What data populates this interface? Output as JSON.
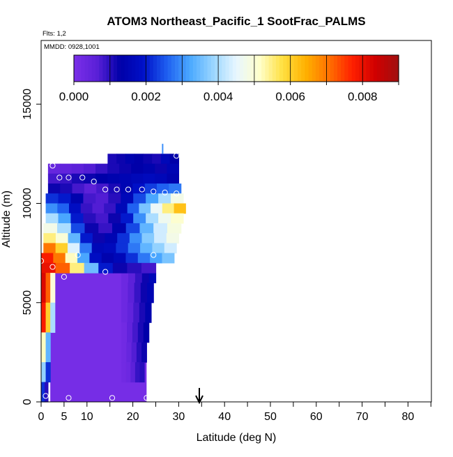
{
  "chart_data": {
    "type": "heatmap",
    "title": "ATOM3 Northeast_Pacific_1 SootFrac_PALMS",
    "flights_label": "Flts: 1,2",
    "dates_label": "MMDD: 0928,1001",
    "xlabel": "Latitude (deg N)",
    "ylabel": "Altitude (m)",
    "xlim": [
      0,
      85
    ],
    "ylim": [
      0,
      17500
    ],
    "x_ticks": [
      0,
      5,
      10,
      20,
      30,
      40,
      50,
      60,
      70,
      80
    ],
    "x_minor_ticks": [
      15,
      25,
      35,
      45,
      55,
      65,
      75,
      85
    ],
    "y_ticks": [
      0,
      5000,
      10000,
      15000
    ],
    "marker_latitude": 34.5,
    "colorbar": {
      "min": 0,
      "max": 0.009,
      "tick_values": [
        0,
        0.002,
        0.004,
        0.006,
        0.008
      ],
      "tick_labels": [
        "0.000",
        "0.002",
        "0.004",
        "0.006",
        "0.008"
      ],
      "colors": [
        "#7b2fe8",
        "#5a20d8",
        "#0000a8",
        "#0010c8",
        "#1e5ef0",
        "#4aa8ff",
        "#9ad6ff",
        "#e8f6ff",
        "#ffffcc",
        "#ffe040",
        "#ffb000",
        "#ff7000",
        "#ff2000",
        "#d00000",
        "#a01010"
      ]
    },
    "curtain_rows": [
      {
        "alt": [
          12000,
          12500
        ],
        "lat": [
          14.5,
          30
        ],
        "values": [
          0.0011,
          0.0012,
          0.0014,
          0.0013,
          0.0012,
          0.0011,
          0.0016,
          0.0013
        ]
      },
      {
        "alt": [
          11500,
          12000
        ],
        "lat": [
          1.5,
          30
        ],
        "values": [
          0.0004,
          0.0005,
          0.0006,
          0.0007,
          0.0009,
          0.0011,
          0.0012,
          0.0013,
          0.0014,
          0.0012,
          0.0015
        ]
      },
      {
        "alt": [
          11000,
          11500
        ],
        "lat": [
          1.5,
          30
        ],
        "values": [
          0.0008,
          0.0009,
          0.0011,
          0.0012,
          0.0013,
          0.0014,
          0.0015,
          0.0016,
          0.0017,
          0.0016,
          0.0014
        ]
      },
      {
        "alt": [
          10500,
          11000
        ],
        "lat": [
          1.5,
          30.5
        ],
        "values": [
          0.0012,
          0.0011,
          0.0008,
          0.0006,
          0.0008,
          0.0011,
          0.0015,
          0.0019,
          0.0023,
          0.0026,
          0.0028
        ]
      },
      {
        "alt": [
          10000,
          10500
        ],
        "lat": [
          1,
          31
        ],
        "values": [
          0.0022,
          0.002,
          0.0014,
          0.0008,
          0.0007,
          0.001,
          0.0016,
          0.0024,
          0.0032,
          0.004,
          0.0048
        ]
      },
      {
        "alt": [
          9500,
          10000
        ],
        "lat": [
          1,
          31.5
        ],
        "values": [
          0.003,
          0.0026,
          0.0018,
          0.0009,
          0.0007,
          0.0009,
          0.0016,
          0.0026,
          0.0036,
          0.0046,
          0.0055,
          0.0062
        ]
      },
      {
        "alt": [
          9000,
          9500
        ],
        "lat": [
          1,
          31
        ],
        "values": [
          0.004,
          0.0032,
          0.002,
          0.001,
          0.0008,
          0.0012,
          0.002,
          0.003,
          0.004,
          0.0047,
          0.0051
        ]
      },
      {
        "alt": [
          8500,
          9000
        ],
        "lat": [
          0.5,
          30.5
        ],
        "values": [
          0.0048,
          0.004,
          0.0024,
          0.0012,
          0.0009,
          0.0014,
          0.0024,
          0.0034,
          0.0043,
          0.0049
        ]
      },
      {
        "alt": [
          8000,
          8500
        ],
        "lat": [
          0.5,
          30
        ],
        "values": [
          0.0055,
          0.005,
          0.0034,
          0.002,
          0.0012,
          0.0015,
          0.0022,
          0.003,
          0.0037,
          0.0043,
          0.0048
        ]
      },
      {
        "alt": [
          7500,
          8000
        ],
        "lat": [
          0.5,
          29.5
        ],
        "values": [
          0.007,
          0.006,
          0.0044,
          0.0028,
          0.0016,
          0.0017,
          0.0022,
          0.0028,
          0.0034,
          0.0038,
          0.0043
        ]
      },
      {
        "alt": [
          7000,
          7500
        ],
        "lat": [
          0,
          29
        ],
        "values": [
          0.0078,
          0.007,
          0.0052,
          0.0032,
          0.0018,
          0.0014,
          0.0016,
          0.0022,
          0.0028,
          0.0032,
          0.0036
        ]
      },
      {
        "alt": [
          6500,
          7000
        ],
        "lat": [
          0,
          25
        ],
        "values": [
          0.008,
          0.0072,
          0.0055,
          0.0035,
          0.002,
          0.0012,
          0.001,
          0.0008
        ]
      },
      {
        "alt": [
          5000,
          6500
        ],
        "lat": [
          0,
          3
        ],
        "values": [
          0.0082,
          0.0072,
          0.005
        ]
      },
      {
        "alt": [
          3500,
          5000
        ],
        "lat": [
          0,
          3
        ],
        "values": [
          0.0078,
          0.006,
          0.004
        ]
      },
      {
        "alt": [
          2000,
          3500
        ],
        "lat": [
          0,
          2
        ],
        "values": [
          0.0052,
          0.0034
        ]
      },
      {
        "alt": [
          1000,
          2000
        ],
        "lat": [
          0,
          2
        ],
        "values": [
          0.0038,
          0.0022
        ]
      },
      {
        "alt": [
          0,
          1000
        ],
        "lat": [
          0,
          1.5
        ],
        "values": [
          0.0022,
          0.001
        ]
      }
    ],
    "lower_block": {
      "alt_bottom": 0,
      "alt_top": 6500,
      "lat_start": 2,
      "lat_end": 23,
      "value": 0.0001
    },
    "lower_gradient": [
      {
        "alt": [
          6000,
          6500
        ],
        "lat": [
          17.5,
          25
        ],
        "values": [
          0.0003,
          0.0006,
          0.0009,
          0.0012,
          0.0016
        ]
      },
      {
        "alt": [
          5000,
          6000
        ],
        "lat": [
          17.5,
          24.5
        ],
        "values": [
          0.0003,
          0.0006,
          0.0009,
          0.0012,
          0.0015
        ]
      },
      {
        "alt": [
          4000,
          5000
        ],
        "lat": [
          17.5,
          24
        ],
        "values": [
          0.0003,
          0.0005,
          0.0008,
          0.0011,
          0.0014
        ]
      },
      {
        "alt": [
          3000,
          4000
        ],
        "lat": [
          17.5,
          23.5
        ],
        "values": [
          0.0002,
          0.0005,
          0.0008,
          0.0011,
          0.0013
        ]
      },
      {
        "alt": [
          2000,
          3000
        ],
        "lat": [
          17.5,
          23
        ],
        "values": [
          0.0002,
          0.0004,
          0.0007,
          0.001,
          0.0012
        ]
      },
      {
        "alt": [
          1000,
          2000
        ],
        "lat": [
          17.5,
          22.5
        ],
        "values": [
          0.0002,
          0.0003,
          0.0006,
          0.0009,
          0.001
        ]
      }
    ],
    "profile_edge": {
      "lat": 26.5,
      "alt": [
        12500,
        13000
      ],
      "value": 0.003
    },
    "sample_points": [
      {
        "lat": 2.5,
        "alt": 11900
      },
      {
        "lat": 4,
        "alt": 11300
      },
      {
        "lat": 6,
        "alt": 11300
      },
      {
        "lat": 9,
        "alt": 11300
      },
      {
        "lat": 11.5,
        "alt": 11100
      },
      {
        "lat": 14,
        "alt": 10700
      },
      {
        "lat": 16.5,
        "alt": 10700
      },
      {
        "lat": 19,
        "alt": 10700
      },
      {
        "lat": 22,
        "alt": 10700
      },
      {
        "lat": 24.5,
        "alt": 10600
      },
      {
        "lat": 27,
        "alt": 10550
      },
      {
        "lat": 29.5,
        "alt": 10500
      },
      {
        "lat": 29.5,
        "alt": 12400
      },
      {
        "lat": 0,
        "alt": 7100
      },
      {
        "lat": 2.5,
        "alt": 6800
      },
      {
        "lat": 5,
        "alt": 6300
      },
      {
        "lat": 8,
        "alt": 7400
      },
      {
        "lat": 14,
        "alt": 6550
      },
      {
        "lat": 24.5,
        "alt": 7400
      },
      {
        "lat": 1,
        "alt": 300
      },
      {
        "lat": 6,
        "alt": 200
      },
      {
        "lat": 15.5,
        "alt": 200
      },
      {
        "lat": 23,
        "alt": 200
      }
    ]
  }
}
